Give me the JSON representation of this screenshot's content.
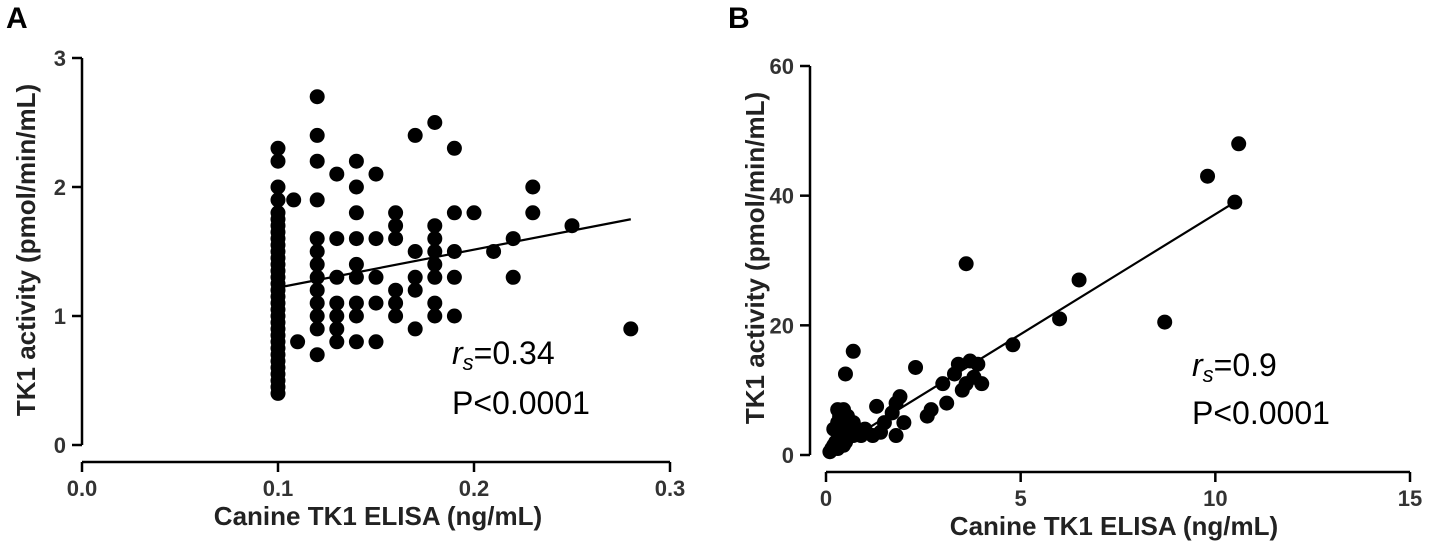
{
  "chart_data": [
    {
      "type": "scatter",
      "panel": "A",
      "xlabel": "Canine TK1 ELISA (ng/mL)",
      "ylabel": "TK1 activity (pmol/min/mL)",
      "xlim": [
        0.0,
        0.3
      ],
      "ylim": [
        0,
        3
      ],
      "xticks": [
        0.0,
        0.1,
        0.2,
        0.3
      ],
      "xtick_labels": [
        "0.0",
        "0.1",
        "0.2",
        "0.3"
      ],
      "yticks": [
        0,
        1,
        2,
        3
      ],
      "ytick_labels": [
        "0",
        "1",
        "2",
        "3"
      ],
      "annotation_r": "r",
      "annotation_sub": "s",
      "annotation_rs_value": "=0.34",
      "annotation_p": "P<0.0001",
      "fit_line": {
        "x": [
          0.1,
          0.28
        ],
        "y": [
          1.22,
          1.75
        ]
      },
      "points": {
        "x": [
          0.1,
          0.1,
          0.1,
          0.1,
          0.1,
          0.1,
          0.1,
          0.1,
          0.1,
          0.1,
          0.1,
          0.1,
          0.1,
          0.1,
          0.1,
          0.1,
          0.1,
          0.1,
          0.1,
          0.1,
          0.1,
          0.1,
          0.1,
          0.1,
          0.1,
          0.1,
          0.1,
          0.1,
          0.1,
          0.1,
          0.1,
          0.1,
          0.1,
          0.108,
          0.11,
          0.12,
          0.12,
          0.12,
          0.12,
          0.12,
          0.12,
          0.12,
          0.12,
          0.12,
          0.12,
          0.12,
          0.12,
          0.12,
          0.13,
          0.13,
          0.13,
          0.13,
          0.13,
          0.13,
          0.13,
          0.14,
          0.14,
          0.14,
          0.14,
          0.14,
          0.14,
          0.14,
          0.14,
          0.14,
          0.15,
          0.15,
          0.15,
          0.15,
          0.15,
          0.16,
          0.16,
          0.16,
          0.16,
          0.16,
          0.16,
          0.17,
          0.17,
          0.17,
          0.17,
          0.17,
          0.18,
          0.18,
          0.18,
          0.18,
          0.18,
          0.18,
          0.18,
          0.18,
          0.19,
          0.19,
          0.19,
          0.19,
          0.19,
          0.2,
          0.21,
          0.22,
          0.22,
          0.23,
          0.23,
          0.25,
          0.28
        ],
        "y": [
          2.3,
          2.2,
          2.0,
          1.8,
          1.75,
          1.7,
          1.65,
          1.6,
          1.55,
          1.5,
          1.45,
          1.4,
          1.35,
          1.3,
          1.25,
          1.2,
          1.15,
          1.1,
          1.05,
          1.0,
          0.95,
          0.9,
          0.85,
          0.8,
          0.75,
          0.7,
          0.65,
          0.6,
          0.55,
          0.5,
          0.45,
          0.4,
          1.9,
          1.9,
          0.8,
          2.7,
          2.4,
          2.2,
          1.9,
          1.6,
          1.5,
          1.4,
          1.3,
          1.2,
          1.1,
          1.0,
          0.9,
          0.7,
          2.1,
          1.6,
          1.3,
          1.1,
          1.0,
          0.9,
          0.8,
          2.2,
          2.0,
          1.8,
          1.6,
          1.4,
          1.3,
          1.1,
          1.0,
          0.8,
          2.1,
          1.6,
          1.3,
          1.1,
          0.8,
          1.8,
          1.7,
          1.6,
          1.2,
          1.1,
          1.0,
          2.4,
          1.5,
          1.3,
          1.2,
          0.9,
          2.5,
          1.7,
          1.6,
          1.5,
          1.4,
          1.3,
          1.1,
          1.0,
          2.3,
          1.8,
          1.5,
          1.3,
          1.0,
          1.8,
          1.5,
          1.6,
          1.3,
          2.0,
          1.8,
          1.7,
          0.9
        ]
      }
    },
    {
      "type": "scatter",
      "panel": "B",
      "xlabel": "Canine TK1 ELISA (ng/mL)",
      "ylabel": "TK1 activity (pmol/min/mL)",
      "xlim": [
        0,
        15
      ],
      "ylim": [
        0,
        60
      ],
      "xticks": [
        0,
        5,
        10,
        15
      ],
      "xtick_labels": [
        "0",
        "5",
        "10",
        "15"
      ],
      "yticks": [
        0,
        20,
        40,
        60
      ],
      "ytick_labels": [
        "0",
        "20",
        "40",
        "60"
      ],
      "annotation_r": "r",
      "annotation_sub": "s",
      "annotation_rs_value": "=0.9",
      "annotation_p": "P<0.0001",
      "fit_line": {
        "x": [
          0.1,
          10.5
        ],
        "y": [
          0.5,
          39
        ]
      },
      "points": {
        "x": [
          0.1,
          0.15,
          0.2,
          0.25,
          0.3,
          0.35,
          0.4,
          0.45,
          0.5,
          0.55,
          0.6,
          0.2,
          0.3,
          0.4,
          0.5,
          0.6,
          0.7,
          0.3,
          0.45,
          0.55,
          0.7,
          0.8,
          0.9,
          1.0,
          1.2,
          1.3,
          1.4,
          1.5,
          1.7,
          1.8,
          1.8,
          1.9,
          2.0,
          2.3,
          2.6,
          2.7,
          3.0,
          3.1,
          3.3,
          3.4,
          3.5,
          3.6,
          3.7,
          3.8,
          3.9,
          4.0,
          3.6,
          4.8,
          6.0,
          6.5,
          8.7,
          9.8,
          10.5,
          10.6,
          0.35,
          0.5,
          0.7
        ],
        "y": [
          0.5,
          1,
          1.5,
          2,
          1,
          2.5,
          3,
          1.5,
          2,
          3,
          3.5,
          4,
          5,
          3,
          2,
          4.5,
          3,
          7,
          7,
          6,
          5,
          4,
          3,
          4,
          3,
          7.5,
          3.5,
          5,
          6.5,
          8,
          3,
          9,
          5,
          13.5,
          6,
          7,
          11,
          8,
          12.5,
          14,
          10,
          11,
          14.5,
          12,
          14,
          11,
          29.5,
          17,
          21,
          27,
          20.5,
          43,
          39,
          48,
          6,
          12.5,
          16
        ]
      }
    }
  ]
}
